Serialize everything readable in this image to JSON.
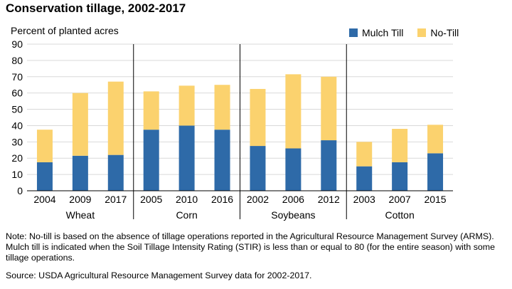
{
  "title": "Conservation tillage, 2002-2017",
  "colors": {
    "mulch": "#2e6aa8",
    "notill": "#fbd26e",
    "axis": "#000000",
    "grid": "#d9d9d9"
  },
  "chart_data": {
    "type": "bar",
    "stacked": true,
    "ylabel": "Percent of planted acres",
    "ylim": [
      0,
      90
    ],
    "yticks": [
      0,
      10,
      20,
      30,
      40,
      50,
      60,
      70,
      80,
      90
    ],
    "grid": true,
    "legend_position": "top-right",
    "groups": [
      {
        "name": "Wheat",
        "categories": [
          "2004",
          "2009",
          "2017"
        ]
      },
      {
        "name": "Corn",
        "categories": [
          "2005",
          "2010",
          "2016"
        ]
      },
      {
        "name": "Soybeans",
        "categories": [
          "2002",
          "2006",
          "2012"
        ]
      },
      {
        "name": "Cotton",
        "categories": [
          "2003",
          "2007",
          "2015"
        ]
      }
    ],
    "series": [
      {
        "name": "Mulch Till",
        "values": [
          17.5,
          21.5,
          22,
          37.5,
          40,
          37.5,
          27.5,
          26,
          31,
          15,
          17.5,
          23
        ]
      },
      {
        "name": "No-Till",
        "values": [
          20,
          38.5,
          45,
          23.5,
          24.5,
          27.5,
          35,
          45.5,
          39,
          15,
          20.5,
          17.5
        ]
      }
    ]
  },
  "notes": {
    "note": "Note: No-till is based on the absence of tillage operations reported in the Agricultural Resource Management Survey (ARMS). Mulch till is indicated when the Soil Tillage Intensity Rating (STIR) is less than or equal to 80 (for the entire season) with some tillage operations.",
    "source": "Source: USDA Agricultural Resource Management Survey data for 2002-2017."
  }
}
